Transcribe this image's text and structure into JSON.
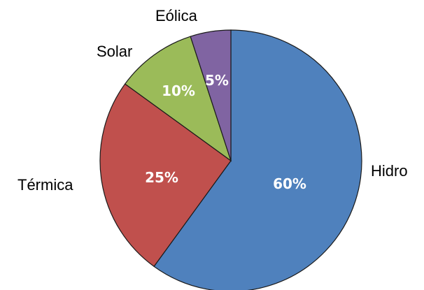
{
  "chart_data": {
    "type": "pie",
    "categories": [
      "Hidro",
      "Térmica",
      "Solar",
      "Eólica"
    ],
    "values": [
      60,
      25,
      10,
      5
    ],
    "data_labels": [
      "60%",
      "25%",
      "10%",
      "5%"
    ],
    "colors": [
      "#4F81BD",
      "#C0504D",
      "#9BBB59",
      "#8064A2"
    ],
    "start_angle_deg": 0,
    "direction": "clockwise",
    "legend": "none"
  }
}
